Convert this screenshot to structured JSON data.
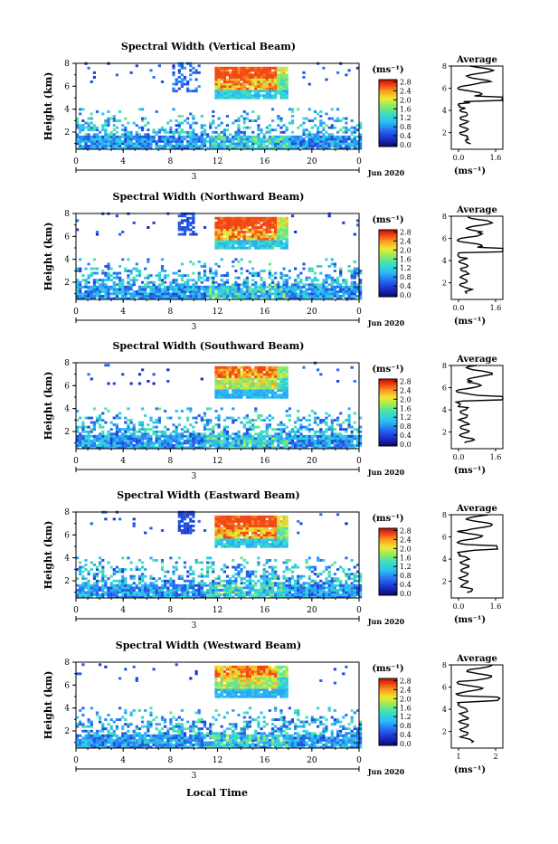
{
  "figure": {
    "xlabel": "Local Time",
    "colorbar_unit": "(ms⁻¹)",
    "avg_title": "Average",
    "avg_xlabel": "(ms⁻¹)",
    "ylabel": "Height (km)",
    "date_day": "3",
    "date_month": "Jun 2020",
    "colorbar_ticks": [
      "0.0",
      "0.4",
      "0.8",
      "1.2",
      "1.6",
      "2.0",
      "2.4",
      "2.8"
    ],
    "height_ticks": [
      "2",
      "4",
      "6",
      "8"
    ],
    "time_ticks": [
      "0",
      "4",
      "8",
      "12",
      "16",
      "20",
      "0"
    ]
  },
  "chart_data": [
    {
      "type": "heatmap",
      "title": "Spectral Width (Vertical Beam)",
      "xlabel": "Local Time",
      "ylabel": "Height (km)",
      "x_range": [
        0,
        24
      ],
      "y_range": [
        0.5,
        8
      ],
      "color_range": [
        0.0,
        2.8
      ],
      "avg_profile": {
        "title": "Average",
        "xlim": [
          0.0,
          1.6
        ],
        "xticks": [
          "0.0",
          "1.6"
        ],
        "ylim": [
          0.5,
          8
        ],
        "peak_height_km": 5.0,
        "peak_value": 1.6
      }
    },
    {
      "type": "heatmap",
      "title": "Spectral Width (Northward Beam)",
      "xlabel": "Local Time",
      "ylabel": "Height (km)",
      "x_range": [
        0,
        24
      ],
      "y_range": [
        0.5,
        8
      ],
      "color_range": [
        0.0,
        2.8
      ],
      "avg_profile": {
        "title": "Average",
        "xlim": [
          0.0,
          1.6
        ],
        "xticks": [
          "0.0",
          "1.6"
        ],
        "ylim": [
          0.5,
          8
        ],
        "peak_height_km": 4.9,
        "peak_value": 1.6
      }
    },
    {
      "type": "heatmap",
      "title": "Spectral Width (Southward Beam)",
      "xlabel": "Local Time",
      "ylabel": "Height (km)",
      "x_range": [
        0,
        24
      ],
      "y_range": [
        0.5,
        8
      ],
      "color_range": [
        0.0,
        2.8
      ],
      "avg_profile": {
        "title": "Average",
        "xlim": [
          0.0,
          1.6
        ],
        "xticks": [
          "0.0",
          "1.6"
        ],
        "ylim": [
          0.5,
          8
        ],
        "peak_height_km": 5.0,
        "peak_value": 1.6
      }
    },
    {
      "type": "heatmap",
      "title": "Spectral Width (Eastward Beam)",
      "xlabel": "Local Time",
      "ylabel": "Height (km)",
      "x_range": [
        0,
        24
      ],
      "y_range": [
        0.5,
        8
      ],
      "color_range": [
        0.0,
        2.8
      ],
      "avg_profile": {
        "title": "Average",
        "xlim": [
          0.0,
          1.6
        ],
        "xticks": [
          "0.0",
          "1.6"
        ],
        "ylim": [
          0.5,
          8
        ],
        "peak_height_km": 5.0,
        "peak_value": 1.4
      }
    },
    {
      "type": "heatmap",
      "title": "Spectral Width (Westward Beam)",
      "xlabel": "Local Time",
      "ylabel": "Height (km)",
      "x_range": [
        0,
        24
      ],
      "y_range": [
        0.5,
        8
      ],
      "color_range": [
        0.0,
        2.8
      ],
      "avg_profile": {
        "title": "Average",
        "xlim": [
          0.0,
          2.4
        ],
        "xticks": [
          "1",
          "2"
        ],
        "ylim": [
          0.5,
          8
        ],
        "peak_height_km": 4.9,
        "peak_value": 2.2
      }
    }
  ]
}
